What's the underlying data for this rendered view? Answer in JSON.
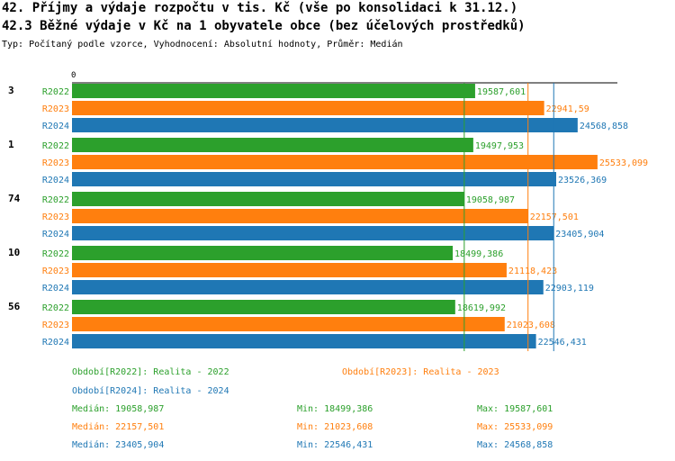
{
  "header": {
    "title_line1": "42. Příjmy a výdaje rozpočtu v tis. Kč (vše po konsolidaci k 31.12.)",
    "title_line2": "42.3 Běžné výdaje v Kč na 1 obyvatele obce (bez účelových prostředků)",
    "subtitle": "Typ: Počítaný podle vzorce, Vyhodnocení: Absolutní hodnoty, Průměr: Medián"
  },
  "chart_data": {
    "type": "bar",
    "orientation": "horizontal",
    "axis_zero_label": "0",
    "xlim": [
      0,
      26500
    ],
    "grid": false,
    "categories": [
      "3",
      "1",
      "74",
      "10",
      "56"
    ],
    "series": [
      {
        "name": "R2022",
        "color": "#2ca02c",
        "values": [
          19587.601,
          19497.953,
          19058.987,
          18499.386,
          18619.992
        ],
        "labels": [
          "19587,601",
          "19497,953",
          "19058,987",
          "18499,386",
          "18619,992"
        ]
      },
      {
        "name": "R2023",
        "color": "#ff7f0e",
        "values": [
          22941.59,
          25533.099,
          22157.501,
          21118.423,
          21023.608
        ],
        "labels": [
          "22941,59",
          "25533,099",
          "22157,501",
          "21118,423",
          "21023,608"
        ]
      },
      {
        "name": "R2024",
        "color": "#1f77b4",
        "values": [
          24568.858,
          23526.369,
          23405.904,
          22903.119,
          22546.431
        ],
        "labels": [
          "24568,858",
          "23526,369",
          "23405,904",
          "22903,119",
          "22546,431"
        ]
      }
    ],
    "median_lines": [
      {
        "series": "R2022",
        "value": 19058.987
      },
      {
        "series": "R2023",
        "value": 22157.501
      },
      {
        "series": "R2024",
        "value": 23405.904
      }
    ]
  },
  "legend": {
    "period_r2022": "Období[R2022]: Realita - 2022",
    "period_r2023": "Období[R2023]: Realita - 2023",
    "period_r2024": "Období[R2024]: Realita - 2024",
    "stats": [
      {
        "median": "Medián: 19058,987",
        "min": "Min: 18499,386",
        "max": "Max: 19587,601",
        "color": "#2ca02c"
      },
      {
        "median": "Medián: 22157,501",
        "min": "Min: 21023,608",
        "max": "Max: 25533,099",
        "color": "#ff7f0e"
      },
      {
        "median": "Medián: 23405,904",
        "min": "Min: 22546,431",
        "max": "Max: 24568,858",
        "color": "#1f77b4"
      }
    ]
  }
}
